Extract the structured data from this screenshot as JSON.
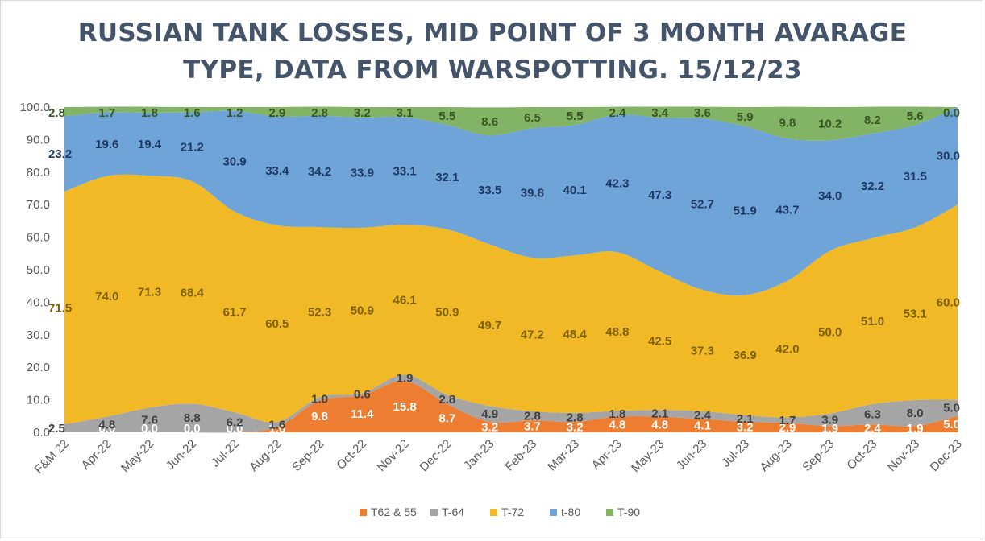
{
  "chart_data": {
    "type": "area",
    "stacked": true,
    "title_lines": [
      "RUSSIAN TANK LOSSES, MID POINT OF 3 MONTH AVARAGE",
      "TYPE, DATA FROM WARSPOTTING. 15/12/23"
    ],
    "categories": [
      "F&M 22",
      "Apr-22",
      "May-22",
      "Jun-22",
      "Jul-22",
      "Aug-22",
      "Sep-22",
      "Oct-22",
      "Nov-22",
      "Dec-22",
      "Jan-23",
      "Feb-23",
      "Mar-23",
      "Apr-23",
      "May-23",
      "Jun-23",
      "Jul-23",
      "Aug-23",
      "Sep-23",
      "Oct-23",
      "Nov-23",
      "Dec-23"
    ],
    "ylim": [
      0,
      100
    ],
    "yticks": [
      "0.0",
      "10.0",
      "20.0",
      "30.0",
      "40.0",
      "50.0",
      "60.0",
      "70.0",
      "80.0",
      "90.0",
      "100.0"
    ],
    "grid": false,
    "legend_position": "bottom",
    "series": [
      {
        "name": "T62 & 55",
        "color": "#ed7d31",
        "label_color": "#ffffff",
        "values": [
          0.0,
          0.0,
          0.0,
          0.0,
          0.0,
          1.6,
          9.8,
          11.4,
          15.8,
          8.7,
          3.2,
          3.7,
          3.2,
          4.8,
          4.8,
          4.1,
          3.2,
          2.9,
          1.9,
          2.4,
          1.9,
          5.0
        ],
        "labels": [
          "0.0",
          "0.0",
          "0.0",
          "0.0",
          "0.0",
          "1.6",
          "9.8",
          "11.4",
          "15.8",
          "8.7",
          "3.2",
          "3.7",
          "3.2",
          "4.8",
          "4.8",
          "4.1",
          "3.2",
          "2.9",
          "1.9",
          "2.4",
          "1.9",
          "5.0"
        ]
      },
      {
        "name": "T-64",
        "color": "#a5a5a5",
        "label_color": "#404040",
        "values": [
          2.5,
          4.8,
          7.6,
          8.8,
          6.2,
          1.6,
          1.0,
          0.6,
          1.9,
          2.8,
          4.9,
          2.8,
          2.8,
          1.8,
          2.1,
          2.4,
          2.1,
          1.7,
          3.9,
          6.3,
          8.0,
          5.0
        ],
        "labels": [
          "2.5",
          "4.8",
          "7.6",
          "8.8",
          "6.2",
          "1.6",
          "1.0",
          "0.6",
          "1.9",
          "2.8",
          "4.9",
          "2.8",
          "2.8",
          "1.8",
          "2.1",
          "2.4",
          "2.1",
          "1.7",
          "3.9",
          "6.3",
          "8.0",
          "5.0"
        ]
      },
      {
        "name": "T-72",
        "color": "#f0b925",
        "label_color": "#7f6000",
        "values": [
          71.5,
          74.0,
          71.3,
          68.4,
          61.7,
          60.5,
          52.3,
          50.9,
          46.1,
          50.9,
          49.7,
          47.2,
          48.4,
          48.8,
          42.5,
          37.3,
          36.9,
          42.0,
          50.0,
          51.0,
          53.1,
          60.0
        ],
        "labels": [
          "71.5",
          "74.0",
          "71.3",
          "68.4",
          "61.7",
          "60.5",
          "52.3",
          "50.9",
          "46.1",
          "50.9",
          "49.7",
          "47.2",
          "48.4",
          "48.8",
          "42.5",
          "37.3",
          "36.9",
          "42.0",
          "50.0",
          "51.0",
          "53.1",
          "60.0"
        ]
      },
      {
        "name": "t-80",
        "color": "#6fa4d8",
        "label_color": "#1f3864",
        "values": [
          23.2,
          19.6,
          19.4,
          21.2,
          30.9,
          33.4,
          34.2,
          33.9,
          33.1,
          32.1,
          33.5,
          39.8,
          40.1,
          42.3,
          47.3,
          52.7,
          51.9,
          43.7,
          34.0,
          32.2,
          31.5,
          30.0
        ],
        "labels": [
          "23.2",
          "19.6",
          "19.4",
          "21.2",
          "30.9",
          "33.4",
          "34.2",
          "33.9",
          "33.1",
          "32.1",
          "33.5",
          "39.8",
          "40.1",
          "42.3",
          "47.3",
          "52.7",
          "51.9",
          "43.7",
          "34.0",
          "32.2",
          "31.5",
          "30.0"
        ]
      },
      {
        "name": "T-90",
        "color": "#83b365",
        "label_color": "#385723",
        "values": [
          2.8,
          1.7,
          1.8,
          1.6,
          1.2,
          2.9,
          2.8,
          3.2,
          3.1,
          5.5,
          8.6,
          6.5,
          5.5,
          2.4,
          3.4,
          3.6,
          5.9,
          9.8,
          10.2,
          8.2,
          5.6,
          0.0
        ],
        "labels": [
          "2.8",
          "1.7",
          "1.8",
          "1.6",
          "1.2",
          "2.9",
          "2.8",
          "3.2",
          "3.1",
          "5.5",
          "8.6",
          "6.5",
          "5.5",
          "2.4",
          "3.4",
          "3.6",
          "5.9",
          "9.8",
          "10.2",
          "8.2",
          "5.6",
          "0.0"
        ]
      }
    ]
  }
}
